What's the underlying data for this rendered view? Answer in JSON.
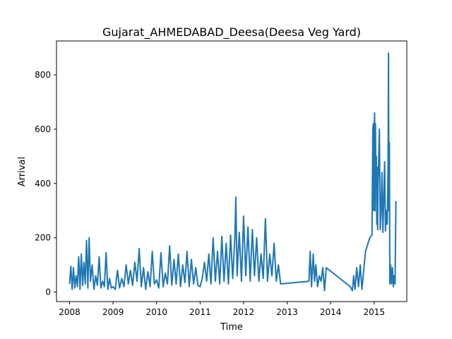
{
  "chart_data": {
    "type": "line",
    "title": "Gujarat_AHMEDABAD_Deesa(Deesa Veg Yard)",
    "xlabel": "Time",
    "ylabel": "Arrival",
    "xlim": [
      2007.7,
      2015.75
    ],
    "ylim": [
      -35,
      925
    ],
    "x_ticks": [
      2008,
      2009,
      2010,
      2011,
      2012,
      2013,
      2014,
      2015
    ],
    "y_ticks": [
      0,
      200,
      400,
      600,
      800
    ],
    "grid": false,
    "line_color": "#1f77b4",
    "series": [
      {
        "x": [
          2008.0,
          2008.03,
          2008.06,
          2008.09,
          2008.12,
          2008.15,
          2008.18,
          2008.21,
          2008.24,
          2008.27,
          2008.3,
          2008.33,
          2008.36,
          2008.39,
          2008.42,
          2008.45,
          2008.48,
          2008.52,
          2008.56,
          2008.6,
          2008.64,
          2008.68,
          2008.72,
          2008.76,
          2008.8,
          2008.84,
          2008.88,
          2008.92,
          2008.96,
          2009.0,
          2009.05,
          2009.1,
          2009.15,
          2009.2,
          2009.25,
          2009.3,
          2009.35,
          2009.4,
          2009.45,
          2009.5,
          2009.55,
          2009.6,
          2009.65,
          2009.7,
          2009.75,
          2009.8,
          2009.85,
          2009.9,
          2009.95,
          2010.0,
          2010.05,
          2010.1,
          2010.15,
          2010.2,
          2010.25,
          2010.3,
          2010.35,
          2010.4,
          2010.45,
          2010.5,
          2010.55,
          2010.6,
          2010.65,
          2010.7,
          2010.75,
          2010.8,
          2010.85,
          2010.9,
          2010.95,
          2011.0,
          2011.05,
          2011.1,
          2011.15,
          2011.2,
          2011.25,
          2011.3,
          2011.35,
          2011.4,
          2011.45,
          2011.5,
          2011.55,
          2011.6,
          2011.65,
          2011.7,
          2011.75,
          2011.8,
          2011.82,
          2011.85,
          2011.9,
          2011.95,
          2012.0,
          2012.05,
          2012.1,
          2012.15,
          2012.2,
          2012.25,
          2012.3,
          2012.35,
          2012.4,
          2012.45,
          2012.5,
          2012.55,
          2012.6,
          2012.65,
          2012.7,
          2012.75,
          2012.8,
          2012.85,
          2013.5,
          2013.53,
          2013.56,
          2013.6,
          2013.63,
          2013.66,
          2013.7,
          2013.74,
          2013.78,
          2013.82,
          2013.86,
          2013.9,
          2014.45,
          2014.5,
          2014.53,
          2014.56,
          2014.6,
          2014.64,
          2014.68,
          2014.72,
          2014.8,
          2014.9,
          2014.95,
          2014.97,
          2014.98,
          2014.99,
          2015.0,
          2015.01,
          2015.02,
          2015.03,
          2015.04,
          2015.05,
          2015.06,
          2015.07,
          2015.08,
          2015.09,
          2015.1,
          2015.12,
          2015.14,
          2015.16,
          2015.18,
          2015.2,
          2015.22,
          2015.24,
          2015.26,
          2015.28,
          2015.3,
          2015.32,
          2015.33,
          2015.34,
          2015.35,
          2015.36,
          2015.38,
          2015.4,
          2015.42,
          2015.44,
          2015.46,
          2015.48,
          2015.5
        ],
        "y": [
          30,
          95,
          10,
          90,
          15,
          60,
          20,
          130,
          10,
          140,
          25,
          110,
          30,
          190,
          15,
          200,
          40,
          100,
          10,
          60,
          25,
          130,
          15,
          40,
          20,
          145,
          10,
          50,
          15,
          20,
          10,
          80,
          15,
          50,
          20,
          100,
          30,
          80,
          25,
          110,
          40,
          160,
          20,
          90,
          10,
          75,
          20,
          150,
          30,
          45,
          15,
          145,
          20,
          70,
          30,
          170,
          25,
          120,
          30,
          140,
          20,
          100,
          35,
          150,
          20,
          120,
          30,
          90,
          25,
          20,
          50,
          110,
          40,
          140,
          30,
          200,
          40,
          150,
          30,
          205,
          40,
          180,
          30,
          210,
          50,
          200,
          350,
          60,
          220,
          40,
          280,
          60,
          240,
          40,
          230,
          60,
          200,
          40,
          140,
          50,
          270,
          40,
          140,
          60,
          180,
          40,
          100,
          30,
          40,
          150,
          20,
          140,
          40,
          100,
          20,
          60,
          40,
          90,
          5,
          90,
          20,
          5,
          60,
          10,
          90,
          20,
          100,
          10,
          150,
          200,
          210,
          600,
          620,
          300,
          600,
          660,
          300,
          620,
          400,
          500,
          250,
          460,
          230,
          400,
          460,
          600,
          230,
          300,
          440,
          220,
          330,
          480,
          225,
          300,
          250,
          460,
          880,
          300,
          550,
          30,
          100,
          30,
          90,
          20,
          60,
          30,
          335
        ]
      }
    ]
  }
}
